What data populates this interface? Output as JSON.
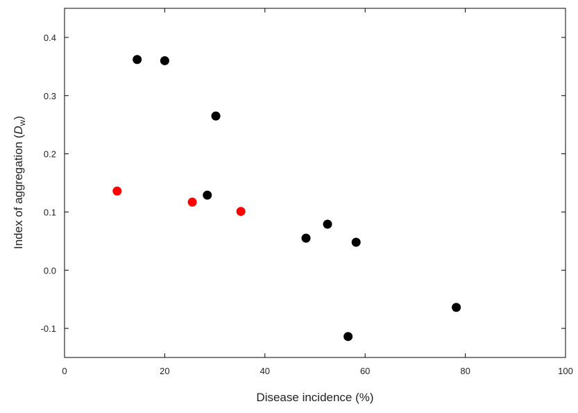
{
  "chart_data": {
    "type": "scatter",
    "x_label": "Disease incidence (%)",
    "y_label": {
      "text": "Index of aggregation (",
      "symbol": "D",
      "subscript": "w",
      "close": ")"
    },
    "xlim": [
      0,
      100
    ],
    "xticks": [
      0,
      20,
      40,
      60,
      80,
      100
    ],
    "ylim": [
      -0.15,
      0.45
    ],
    "yticks": [
      -0.1,
      {
        "value": 0,
        "label": "0.0"
      },
      0.1,
      0.2,
      0.3,
      0.4
    ],
    "series": [
      {
        "color": "#000000",
        "x": [
          14.5,
          20,
          30.2,
          28.5,
          48.2,
          52.5,
          58.2,
          56.6,
          78.2
        ],
        "values": [
          0.362,
          0.36,
          0.265,
          0.129,
          0.055,
          0.079,
          0.048,
          -0.114,
          -0.064
        ]
      },
      {
        "color": "#ff0000",
        "x": [
          10.5,
          25.5,
          35.2
        ],
        "values": [
          0.136,
          0.117,
          0.101
        ]
      }
    ]
  }
}
